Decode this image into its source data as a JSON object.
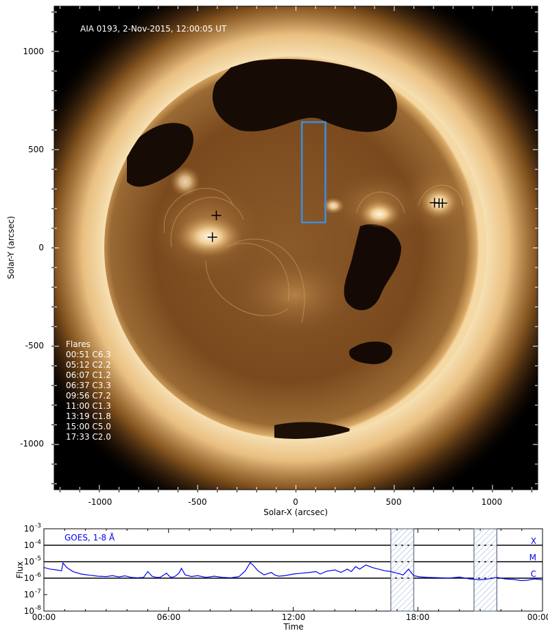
{
  "image_panel": {
    "title": "AIA 0193, 2-Nov-2015, 12:00:05 UT",
    "xlabel": "Solar-X (arcsec)",
    "ylabel": "Solar-Y (arcsec)",
    "x_ticks": [
      "-1000",
      "-500",
      "0",
      "500",
      "1000"
    ],
    "y_ticks": [
      "1000",
      "500",
      "0",
      "-500",
      "-1000"
    ],
    "xlim": [
      -1230,
      1230
    ],
    "ylim": [
      -1230,
      1230
    ],
    "solar_radius_arcsec": 973,
    "box": {
      "x": [
        30,
        150
      ],
      "y": [
        130,
        640
      ],
      "color": "#3a8fe0"
    },
    "markers": [
      {
        "x": -405,
        "y": 165
      },
      {
        "x": -425,
        "y": 55
      },
      {
        "x": 705,
        "y": 230
      },
      {
        "x": 728,
        "y": 228
      },
      {
        "x": 745,
        "y": 228
      }
    ],
    "flare_list_title": "Flares",
    "flares": [
      "00:51 C6.3",
      "05:12 C2.2",
      "06:07 C1.2",
      "06:37 C3.3",
      "09:56 C7.2",
      "11:00 C1.3",
      "13:19 C1.8",
      "15:00 C5.0",
      "17:33 C2.0"
    ],
    "colors": {
      "disk": "#6b3f16",
      "corona": "#f3d7a6",
      "coronal_hole": "#160b05",
      "background": "#000000"
    }
  },
  "chart_data": {
    "type": "line",
    "title": "GOES, 1-8 Å",
    "xlabel": "Time",
    "ylabel": "Flux",
    "x_ticks": [
      "00:00",
      "06:00",
      "12:00",
      "18:00",
      "00:00"
    ],
    "xlim_hours": [
      0,
      24
    ],
    "y_tick_exponents": [
      -3,
      -4,
      -5,
      -6,
      -7,
      -8
    ],
    "ylim_log10": [
      -8,
      -3
    ],
    "class_levels": [
      {
        "label": "X",
        "log10": -4
      },
      {
        "label": "M",
        "log10": -5
      },
      {
        "label": "C",
        "log10": -6
      }
    ],
    "shaded_intervals_hours": [
      [
        16.7,
        17.8
      ],
      [
        20.7,
        21.8
      ]
    ],
    "series": [
      {
        "color": "#0000ee",
        "x_hours": [
          0.0,
          0.3,
          0.6,
          0.85,
          0.92,
          1.1,
          1.4,
          1.8,
          2.2,
          2.6,
          3.0,
          3.3,
          3.6,
          3.9,
          4.2,
          4.5,
          4.8,
          5.0,
          5.2,
          5.4,
          5.6,
          5.9,
          6.1,
          6.3,
          6.5,
          6.62,
          6.8,
          7.1,
          7.4,
          7.8,
          8.2,
          8.6,
          9.0,
          9.4,
          9.7,
          9.93,
          10.1,
          10.3,
          10.6,
          10.95,
          11.1,
          11.3,
          11.6,
          12.0,
          12.4,
          12.8,
          13.1,
          13.3,
          13.6,
          14.0,
          14.3,
          14.6,
          14.8,
          15.0,
          15.2,
          15.5,
          15.8,
          16.1,
          16.4,
          16.7,
          17.0,
          17.3,
          17.55,
          17.8,
          18.1,
          18.5,
          19.0,
          19.5,
          20.0,
          20.5,
          21.0,
          21.4,
          21.8,
          22.2,
          22.6,
          23.0,
          23.3,
          23.6,
          24.0
        ],
        "y_log10": [
          -5.35,
          -5.45,
          -5.5,
          -5.55,
          -5.08,
          -5.35,
          -5.6,
          -5.75,
          -5.82,
          -5.88,
          -5.9,
          -5.85,
          -5.92,
          -5.86,
          -5.95,
          -5.98,
          -5.95,
          -5.6,
          -5.88,
          -5.95,
          -5.95,
          -5.7,
          -5.95,
          -5.9,
          -5.7,
          -5.4,
          -5.8,
          -5.9,
          -5.85,
          -5.95,
          -5.88,
          -5.95,
          -5.98,
          -5.9,
          -5.55,
          -5.05,
          -5.25,
          -5.55,
          -5.8,
          -5.65,
          -5.8,
          -5.88,
          -5.85,
          -5.75,
          -5.7,
          -5.65,
          -5.6,
          -5.75,
          -5.58,
          -5.5,
          -5.65,
          -5.45,
          -5.6,
          -5.3,
          -5.45,
          -5.2,
          -5.35,
          -5.45,
          -5.55,
          -5.6,
          -5.7,
          -5.8,
          -5.45,
          -5.85,
          -5.92,
          -5.95,
          -5.97,
          -6.0,
          -5.93,
          -6.05,
          -6.1,
          -6.05,
          -5.95,
          -6.05,
          -6.08,
          -6.15,
          -6.12,
          -6.05,
          -6.1
        ]
      }
    ]
  }
}
